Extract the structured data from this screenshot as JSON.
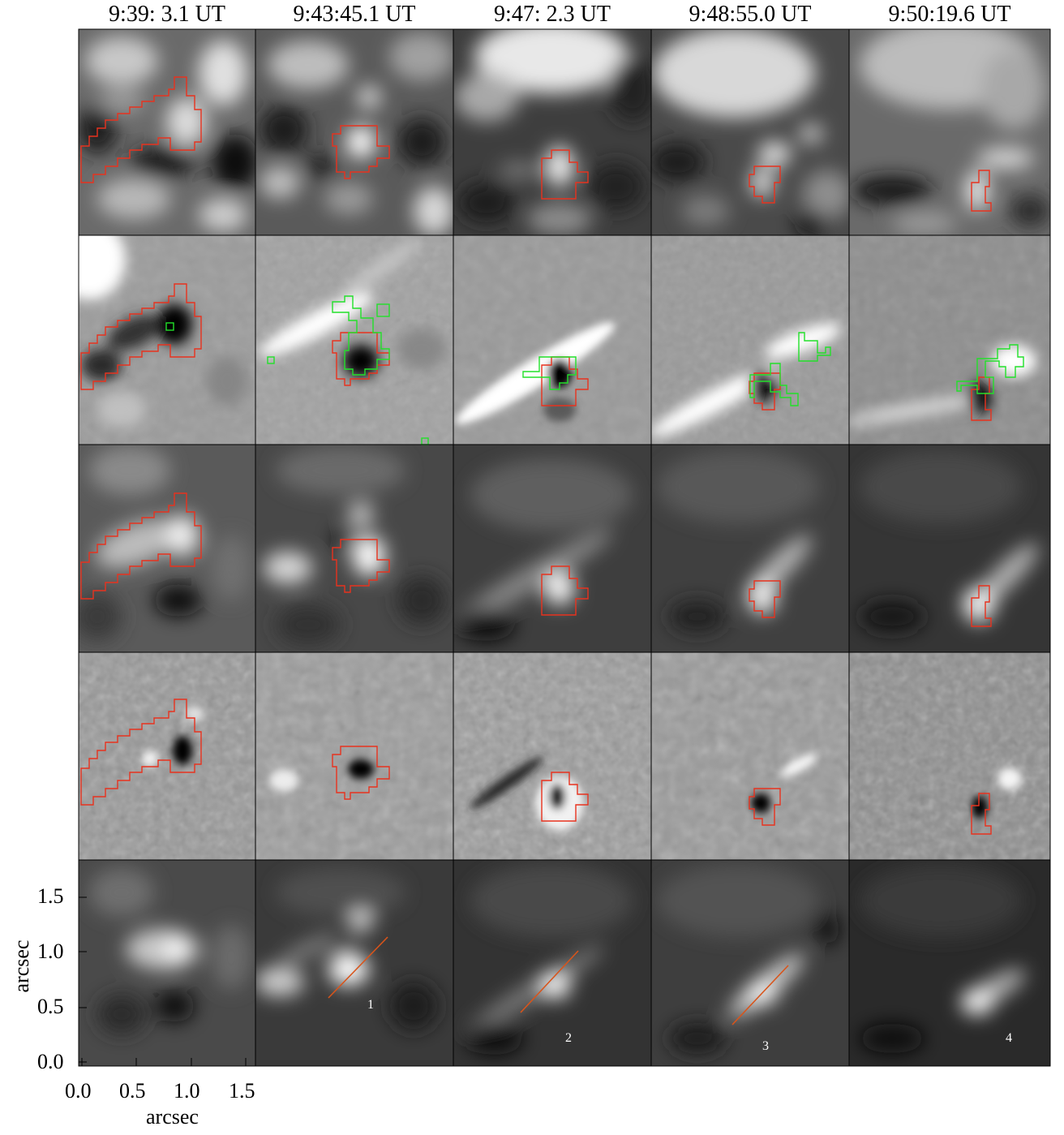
{
  "columns": [
    {
      "time": "9:39: 3.1 UT"
    },
    {
      "time": "9:43:45.1 UT"
    },
    {
      "time": "9:47: 2.3 UT"
    },
    {
      "time": "9:48:55.0 UT"
    },
    {
      "time": "9:50:19.6 UT"
    }
  ],
  "axes": {
    "x_label": "arcsec",
    "y_label": "arcsec",
    "x_ticks": [
      "0.0",
      "0.5",
      "1.0",
      "1.5"
    ],
    "y_ticks": [
      "1.5",
      "1.0",
      "0.5",
      "0.0"
    ]
  },
  "slit_labels": [
    "1",
    "2",
    "3",
    "4"
  ],
  "colors": {
    "contour_red": "#e8321e",
    "contour_green": "#22e02a",
    "slit_line": "#d9541a"
  }
}
